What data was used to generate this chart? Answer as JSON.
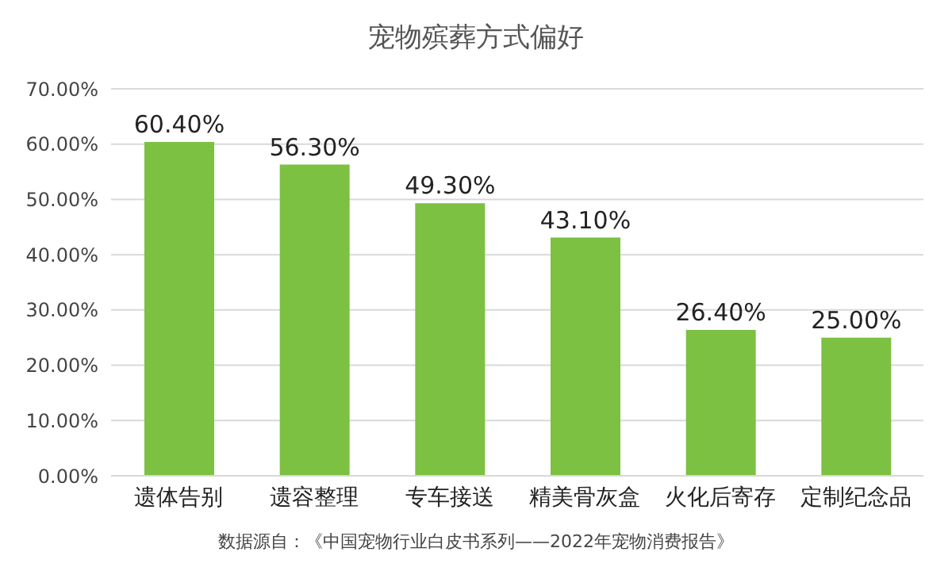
{
  "chart_data": {
    "type": "bar",
    "title": "宠物殡葬方式偏好",
    "categories": [
      "遗体告别",
      "遗容整理",
      "专车接送",
      "精美骨灰盒",
      "火化后寄存",
      "定制纪念品"
    ],
    "values": [
      60.4,
      56.3,
      49.3,
      43.1,
      26.4,
      25.0
    ],
    "value_labels": [
      "60.40%",
      "56.30%",
      "49.30%",
      "43.10%",
      "26.40%",
      "25.00%"
    ],
    "color": "#7cc142",
    "ylim": [
      0,
      70
    ],
    "yticks": [
      {
        "value": 0,
        "label": "0.00%"
      },
      {
        "value": 10,
        "label": "10.00%"
      },
      {
        "value": 20,
        "label": "20.00%"
      },
      {
        "value": 30,
        "label": "30.00%"
      },
      {
        "value": 40,
        "label": "40.00%"
      },
      {
        "value": 50,
        "label": "50.00%"
      },
      {
        "value": 60,
        "label": "60.00%"
      },
      {
        "value": 70,
        "label": "70.00%"
      }
    ],
    "grid": "y",
    "annotations": [
      "数据源自：《中国宠物行业白皮书系列——2022年宠物消费报告》"
    ]
  }
}
